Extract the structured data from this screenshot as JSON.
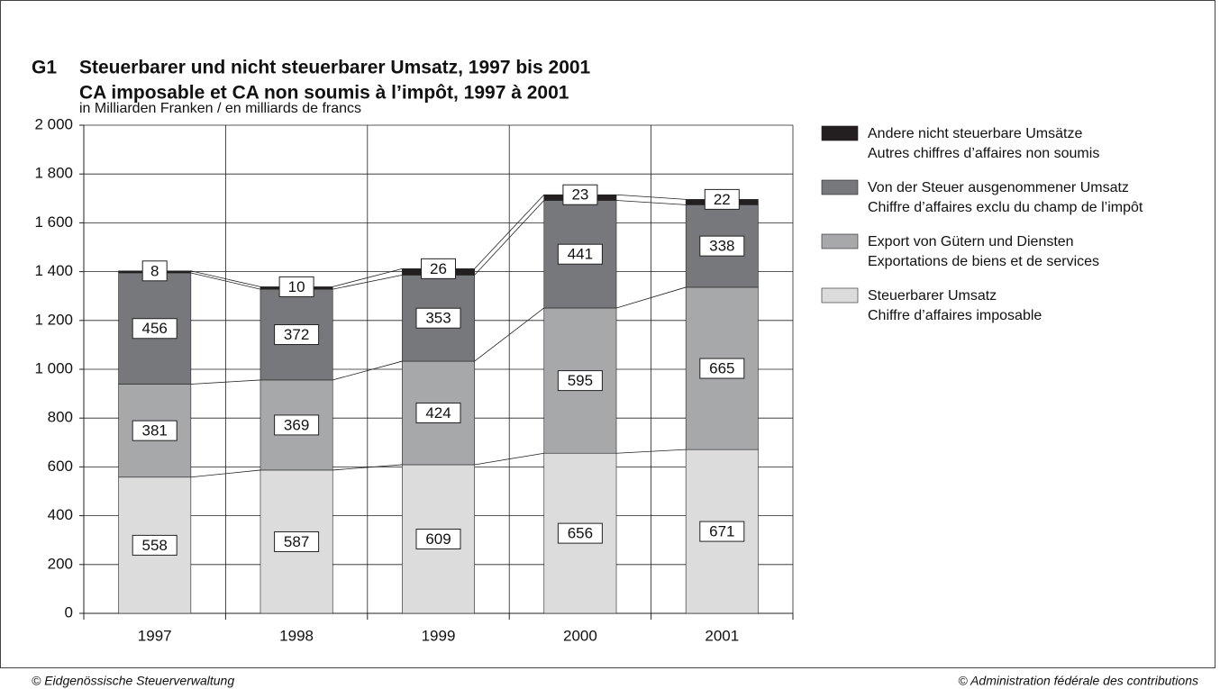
{
  "chart_data": {
    "type": "stacked_bar",
    "figure_label": "G1",
    "title": [
      "Steuerbarer und nicht steuerbarer Umsatz, 1997 bis 2001",
      "CA imposable et CA non soumis à l’impôt, 1997 à 2001"
    ],
    "y_axis_label": "in Milliarden Franken / en milliards de francs",
    "categories": [
      "1997",
      "1998",
      "1999",
      "2000",
      "2001"
    ],
    "series": [
      {
        "name": [
          "Steuerbarer Umsatz",
          "Chiffre d’affaires imposable"
        ],
        "color": "#dcdcdd",
        "values": [
          558,
          587,
          609,
          656,
          671
        ]
      },
      {
        "name": [
          "Export von Gütern und Diensten",
          "Exportations de biens et de services"
        ],
        "color": "#a7a8aa",
        "values": [
          381,
          369,
          424,
          595,
          665
        ]
      },
      {
        "name": [
          "Von der Steuer ausgenommener Umsatz",
          "Chiffre d’affaires exclu du champ de l’impôt"
        ],
        "color": "#77787b",
        "values": [
          456,
          372,
          353,
          441,
          338
        ]
      },
      {
        "name": [
          "Andere nicht steuerbare Umsätze",
          "Autres chiffres d’affaires non soumis"
        ],
        "color": "#231f20",
        "values": [
          8,
          10,
          26,
          23,
          22
        ]
      }
    ],
    "ylim": [
      0,
      2000
    ],
    "yticks": [
      0,
      200,
      400,
      600,
      800,
      {
        "value": 1000,
        "label": "1 000"
      },
      {
        "value": 1200,
        "label": "1 200"
      },
      {
        "value": 1400,
        "label": "1 400"
      },
      {
        "value": 1600,
        "label": "1 600"
      },
      {
        "value": 1800,
        "label": "1 800"
      },
      {
        "value": 2000,
        "label": "2 000"
      }
    ],
    "grid": true,
    "legend": "right",
    "source_left": "© Eidgenössische Steuerverwaltung",
    "source_right": "© Administration fédérale des contributions"
  }
}
